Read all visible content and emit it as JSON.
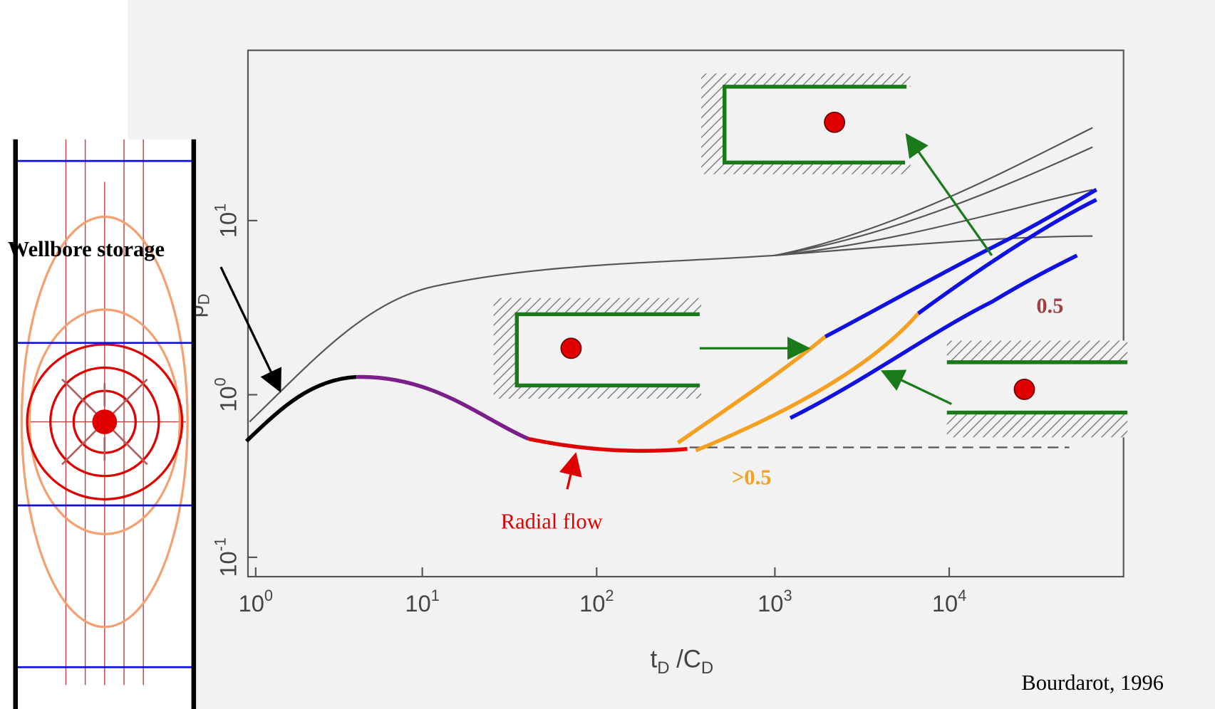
{
  "labels": {
    "wellbore_storage": "Wellbore storage",
    "radial_flow": "Radial flow",
    "slope_gt": ">0.5",
    "slope_eq": "0.5",
    "source": "Bourdarot, 1996"
  },
  "chart": {
    "x_ticks": [
      {
        "base": "10",
        "exp": "0"
      },
      {
        "base": "10",
        "exp": "1"
      },
      {
        "base": "10",
        "exp": "2"
      },
      {
        "base": "10",
        "exp": "3"
      },
      {
        "base": "10",
        "exp": "4"
      }
    ],
    "y_ticks": [
      {
        "base": "10",
        "exp": "1"
      },
      {
        "base": "10",
        "exp": "0"
      },
      {
        "base": "10",
        "exp": "-1"
      }
    ],
    "x_label": {
      "main": "t",
      "main_sub": "D",
      "rest": " /C",
      "rest_sub": "D"
    },
    "y_label": {
      "main": "p",
      "main_sub": "D"
    }
  }
}
